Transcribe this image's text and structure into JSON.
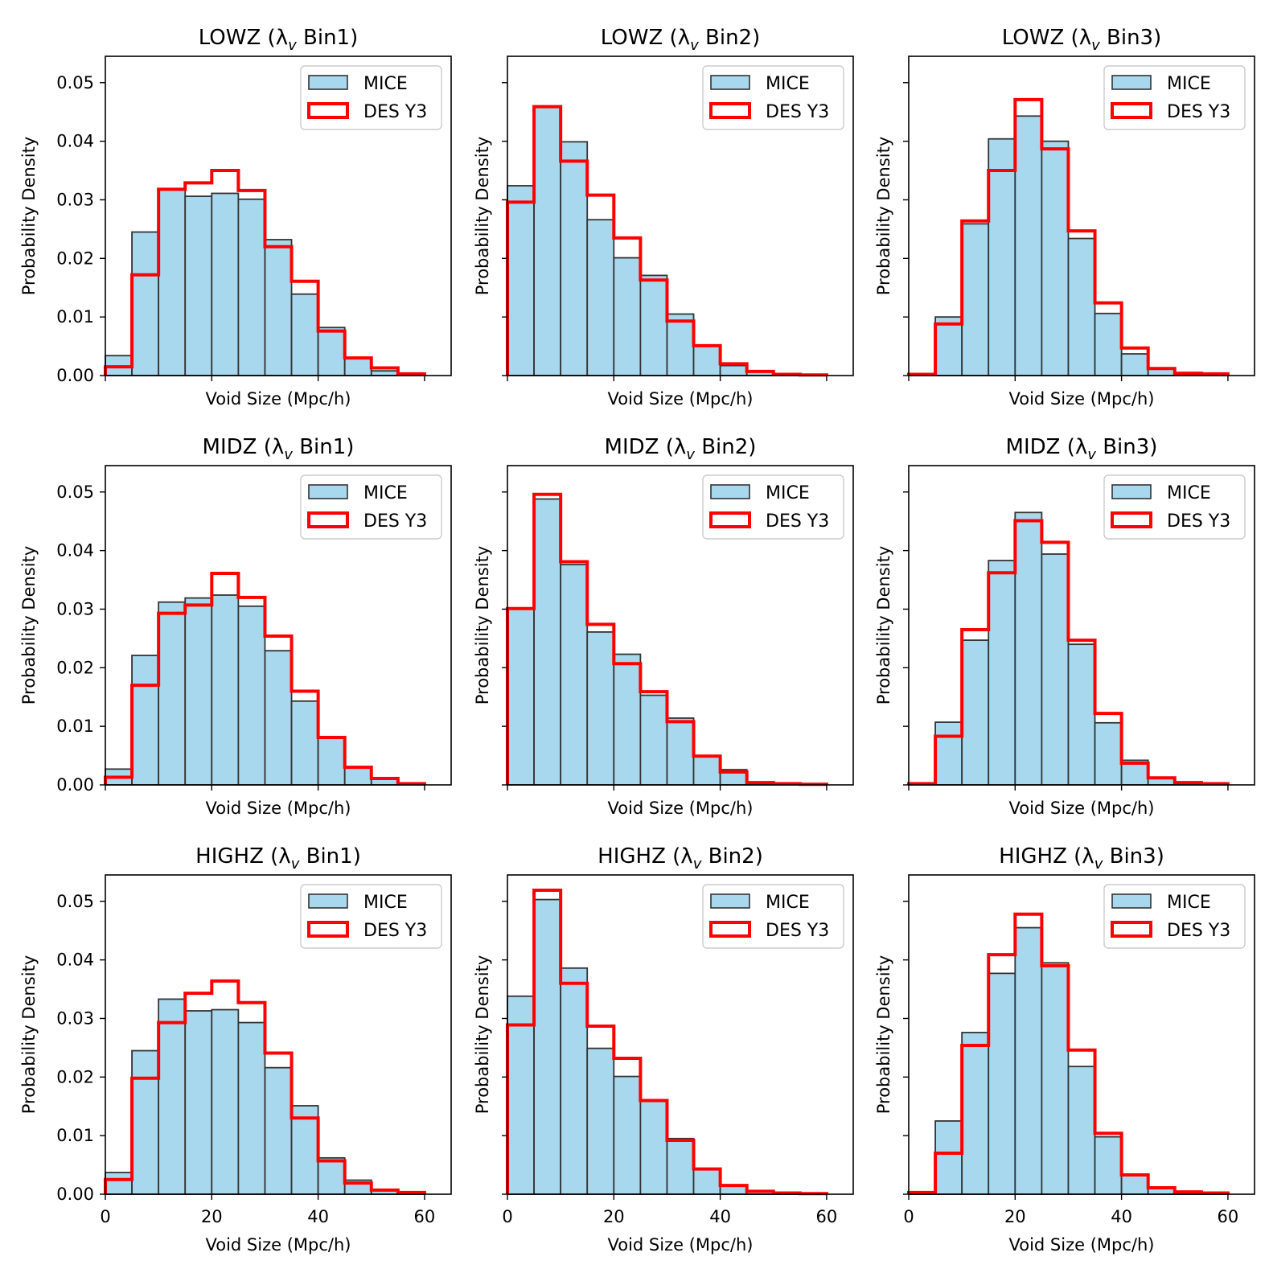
{
  "figure": {
    "xlabel": "Void Size (Mpc/h)",
    "ylabel": "Probability Density",
    "series_names": [
      "MICE",
      "DES Y3"
    ],
    "colors": {
      "mice_fill": "#a8d8ee",
      "mice_edge": "#333333",
      "des": "#ff0000"
    }
  },
  "chart_data": [
    {
      "type": "bar",
      "title": "LOWZ (λ",
      "title_sub": "v",
      "title_end": " Bin1)",
      "xlim": [
        0,
        65
      ],
      "ylim": [
        0,
        0.0545
      ],
      "xticks": [
        0,
        20,
        40,
        60
      ],
      "yticks": [
        0.0,
        0.01,
        0.02,
        0.03,
        0.04,
        0.05
      ],
      "bin_edges": [
        0,
        5,
        10,
        15,
        20,
        25,
        30,
        35,
        40,
        45,
        50,
        55,
        60
      ],
      "series": [
        {
          "name": "MICE",
          "values": [
            0.0034,
            0.0245,
            0.0318,
            0.0306,
            0.0311,
            0.0301,
            0.0232,
            0.0139,
            0.0082,
            0.0029,
            0.0008,
            0.0002
          ]
        },
        {
          "name": "DES Y3",
          "values": [
            0.0015,
            0.0172,
            0.0318,
            0.0329,
            0.035,
            0.0316,
            0.022,
            0.0161,
            0.0076,
            0.003,
            0.0013,
            0.0003
          ]
        }
      ]
    },
    {
      "type": "bar",
      "title": "LOWZ (λ",
      "title_sub": "v",
      "title_end": " Bin2)",
      "xlim": [
        0,
        65
      ],
      "ylim": [
        0,
        0.0545
      ],
      "xticks": [
        0,
        20,
        40,
        60
      ],
      "yticks": [
        0.0,
        0.01,
        0.02,
        0.03,
        0.04,
        0.05
      ],
      "bin_edges": [
        0,
        5,
        10,
        15,
        20,
        25,
        30,
        35,
        40,
        45,
        50,
        55,
        60
      ],
      "series": [
        {
          "name": "MICE",
          "values": [
            0.0324,
            0.0459,
            0.0399,
            0.0266,
            0.0201,
            0.0171,
            0.0105,
            0.005,
            0.0017,
            0.0006,
            0.0002,
            0.0001
          ]
        },
        {
          "name": "DES Y3",
          "values": [
            0.0296,
            0.0459,
            0.0366,
            0.0308,
            0.0235,
            0.0163,
            0.0093,
            0.0051,
            0.002,
            0.0007,
            0.0002,
            0.0001
          ]
        }
      ]
    },
    {
      "type": "bar",
      "title": "LOWZ (λ",
      "title_sub": "v",
      "title_end": " Bin3)",
      "xlim": [
        0,
        65
      ],
      "ylim": [
        0,
        0.0545
      ],
      "xticks": [
        0,
        20,
        40,
        60
      ],
      "yticks": [
        0.0,
        0.01,
        0.02,
        0.03,
        0.04,
        0.05
      ],
      "bin_edges": [
        0,
        5,
        10,
        15,
        20,
        25,
        30,
        35,
        40,
        45,
        50,
        55,
        60
      ],
      "series": [
        {
          "name": "MICE",
          "values": [
            0.0002,
            0.01,
            0.0259,
            0.0404,
            0.0443,
            0.04,
            0.0234,
            0.0106,
            0.0037,
            0.0012,
            0.0003,
            0.0001
          ]
        },
        {
          "name": "DES Y3",
          "values": [
            0.0002,
            0.0088,
            0.0264,
            0.035,
            0.0471,
            0.0387,
            0.0247,
            0.0124,
            0.0047,
            0.0012,
            0.0004,
            0.0003
          ]
        }
      ]
    },
    {
      "type": "bar",
      "title": "MIDZ (λ",
      "title_sub": "v",
      "title_end": " Bin1)",
      "xlim": [
        0,
        65
      ],
      "ylim": [
        0,
        0.0545
      ],
      "xticks": [
        0,
        20,
        40,
        60
      ],
      "yticks": [
        0.0,
        0.01,
        0.02,
        0.03,
        0.04,
        0.05
      ],
      "bin_edges": [
        0,
        5,
        10,
        15,
        20,
        25,
        30,
        35,
        40,
        45,
        50,
        55,
        60
      ],
      "series": [
        {
          "name": "MICE",
          "values": [
            0.0027,
            0.0221,
            0.0312,
            0.0319,
            0.0324,
            0.0305,
            0.0229,
            0.0143,
            0.0081,
            0.003,
            0.001,
            0.0002
          ]
        },
        {
          "name": "DES Y3",
          "values": [
            0.0013,
            0.017,
            0.0293,
            0.0307,
            0.0361,
            0.032,
            0.0254,
            0.016,
            0.0081,
            0.003,
            0.0011,
            0.0002
          ]
        }
      ]
    },
    {
      "type": "bar",
      "title": "MIDZ (λ",
      "title_sub": "v",
      "title_end": " Bin2)",
      "xlim": [
        0,
        65
      ],
      "ylim": [
        0,
        0.0545
      ],
      "xticks": [
        0,
        20,
        40,
        60
      ],
      "yticks": [
        0.0,
        0.01,
        0.02,
        0.03,
        0.04,
        0.05
      ],
      "bin_edges": [
        0,
        5,
        10,
        15,
        20,
        25,
        30,
        35,
        40,
        45,
        50,
        55,
        60
      ],
      "series": [
        {
          "name": "MICE",
          "values": [
            0.0301,
            0.0488,
            0.0376,
            0.0261,
            0.0223,
            0.0153,
            0.0114,
            0.0049,
            0.0026,
            0.0005,
            0.0002,
            0.0001
          ]
        },
        {
          "name": "DES Y3",
          "values": [
            0.0301,
            0.0496,
            0.0381,
            0.0274,
            0.0207,
            0.0159,
            0.0108,
            0.0049,
            0.0022,
            0.0004,
            0.0002,
            0.0001
          ]
        }
      ]
    },
    {
      "type": "bar",
      "title": "MIDZ (λ",
      "title_sub": "v",
      "title_end": " Bin3)",
      "xlim": [
        0,
        65
      ],
      "ylim": [
        0,
        0.0545
      ],
      "xticks": [
        0,
        20,
        40,
        60
      ],
      "yticks": [
        0.0,
        0.01,
        0.02,
        0.03,
        0.04,
        0.05
      ],
      "bin_edges": [
        0,
        5,
        10,
        15,
        20,
        25,
        30,
        35,
        40,
        45,
        50,
        55,
        60
      ],
      "series": [
        {
          "name": "MICE",
          "values": [
            0.0002,
            0.0107,
            0.0247,
            0.0383,
            0.0465,
            0.0394,
            0.024,
            0.0106,
            0.0042,
            0.0013,
            0.0004,
            0.0002
          ]
        },
        {
          "name": "DES Y3",
          "values": [
            0.0002,
            0.0083,
            0.0265,
            0.0362,
            0.0451,
            0.0414,
            0.0247,
            0.0122,
            0.0037,
            0.0012,
            0.0004,
            0.0002
          ]
        }
      ]
    },
    {
      "type": "bar",
      "title": "HIGHZ (λ",
      "title_sub": "v",
      "title_end": " Bin1)",
      "xlim": [
        0,
        65
      ],
      "ylim": [
        0,
        0.0545
      ],
      "xticks": [
        0,
        20,
        40,
        60
      ],
      "yticks": [
        0.0,
        0.01,
        0.02,
        0.03,
        0.04,
        0.05
      ],
      "bin_edges": [
        0,
        5,
        10,
        15,
        20,
        25,
        30,
        35,
        40,
        45,
        50,
        55,
        60
      ],
      "series": [
        {
          "name": "MICE",
          "values": [
            0.0037,
            0.0245,
            0.0333,
            0.0313,
            0.0315,
            0.0293,
            0.0216,
            0.0151,
            0.0062,
            0.0024,
            0.0008,
            0.0002
          ]
        },
        {
          "name": "DES Y3",
          "values": [
            0.0025,
            0.0198,
            0.0293,
            0.0343,
            0.0364,
            0.0327,
            0.0241,
            0.013,
            0.0057,
            0.0019,
            0.0007,
            0.0003
          ]
        }
      ]
    },
    {
      "type": "bar",
      "title": "HIGHZ (λ",
      "title_sub": "v",
      "title_end": " Bin2)",
      "xlim": [
        0,
        65
      ],
      "ylim": [
        0,
        0.0545
      ],
      "xticks": [
        0,
        20,
        40,
        60
      ],
      "yticks": [
        0.0,
        0.01,
        0.02,
        0.03,
        0.04,
        0.05
      ],
      "bin_edges": [
        0,
        5,
        10,
        15,
        20,
        25,
        30,
        35,
        40,
        45,
        50,
        55,
        60
      ],
      "series": [
        {
          "name": "MICE",
          "values": [
            0.0338,
            0.0503,
            0.0386,
            0.0249,
            0.0201,
            0.016,
            0.0095,
            0.0043,
            0.0015,
            0.0005,
            0.0002,
            0.0001
          ]
        },
        {
          "name": "DES Y3",
          "values": [
            0.0289,
            0.0519,
            0.036,
            0.0287,
            0.0232,
            0.016,
            0.0092,
            0.0043,
            0.0015,
            0.0005,
            0.0002,
            0.0001
          ]
        }
      ]
    },
    {
      "type": "bar",
      "title": "HIGHZ (λ",
      "title_sub": "v",
      "title_end": " Bin3)",
      "xlim": [
        0,
        65
      ],
      "ylim": [
        0,
        0.0545
      ],
      "xticks": [
        0,
        20,
        40,
        60
      ],
      "yticks": [
        0.0,
        0.01,
        0.02,
        0.03,
        0.04,
        0.05
      ],
      "bin_edges": [
        0,
        5,
        10,
        15,
        20,
        25,
        30,
        35,
        40,
        45,
        50,
        55,
        60
      ],
      "series": [
        {
          "name": "MICE",
          "values": [
            0.0003,
            0.0125,
            0.0276,
            0.0377,
            0.0455,
            0.0395,
            0.0218,
            0.0098,
            0.0033,
            0.0011,
            0.0004,
            0.0002
          ]
        },
        {
          "name": "DES Y3",
          "values": [
            0.0003,
            0.007,
            0.0254,
            0.0409,
            0.0478,
            0.039,
            0.0246,
            0.0104,
            0.0033,
            0.0011,
            0.0004,
            0.0002
          ]
        }
      ]
    }
  ]
}
